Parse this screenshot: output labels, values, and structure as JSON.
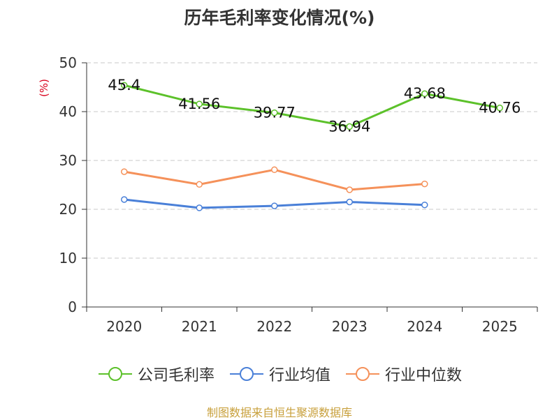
{
  "title": "历年毛利率变化情况(%)",
  "source": "制图数据来自恒生聚源数据库",
  "colors": {
    "company": "#5cc12a",
    "avg": "#4a80d8",
    "median": "#f5915a",
    "unit": "#d9001b"
  },
  "chart_data": {
    "type": "line",
    "title": "历年毛利率变化情况(%)",
    "ylabel": "(%)",
    "xlabel": "",
    "ylim": [
      0,
      50
    ],
    "yticks": [
      0,
      10,
      20,
      30,
      40,
      50
    ],
    "categories": [
      "2020",
      "2021",
      "2022",
      "2023",
      "2024",
      "2025"
    ],
    "grid": true,
    "legend_position": "bottom",
    "series": [
      {
        "name": "公司毛利率",
        "color": "#5cc12a",
        "values": [
          45.4,
          41.56,
          39.77,
          36.94,
          43.68,
          40.76
        ],
        "labels": [
          "45.4",
          "41.56",
          "39.77",
          "36.94",
          "43.68",
          "40.76"
        ],
        "show_labels": true
      },
      {
        "name": "行业均值",
        "color": "#4a80d8",
        "values": [
          22.0,
          20.3,
          20.7,
          21.5,
          20.9,
          null
        ],
        "show_labels": false
      },
      {
        "name": "行业中位数",
        "color": "#f5915a",
        "values": [
          27.7,
          25.1,
          28.1,
          24.0,
          25.2,
          null
        ],
        "show_labels": false
      }
    ]
  }
}
